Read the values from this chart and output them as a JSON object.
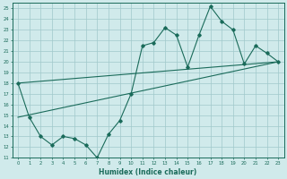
{
  "xlabel": "Humidex (Indice chaleur)",
  "ylabel": "",
  "bg_color": "#d0eaeb",
  "grid_color": "#a0c8ca",
  "line_color": "#1a6b5a",
  "xlim": [
    -0.5,
    23.5
  ],
  "ylim": [
    11,
    25.5
  ],
  "xticks": [
    0,
    1,
    2,
    3,
    4,
    5,
    6,
    7,
    8,
    9,
    10,
    11,
    12,
    13,
    14,
    15,
    16,
    17,
    18,
    19,
    20,
    21,
    22,
    23
  ],
  "yticks": [
    11,
    12,
    13,
    14,
    15,
    16,
    17,
    18,
    19,
    20,
    21,
    22,
    23,
    24,
    25
  ],
  "curve1_x": [
    0,
    1,
    2,
    3,
    4,
    5,
    6,
    7,
    8,
    9,
    10,
    11,
    12,
    13,
    14,
    15,
    16,
    17,
    18,
    19,
    20,
    21,
    22,
    23
  ],
  "curve1_y": [
    18.0,
    14.8,
    13.0,
    12.2,
    13.0,
    12.8,
    12.2,
    11.0,
    13.2,
    14.5,
    17.0,
    21.5,
    21.8,
    23.2,
    22.5,
    19.5,
    22.5,
    25.2,
    23.8,
    23.0,
    19.8,
    21.5,
    20.8,
    20.0
  ],
  "line1_x": [
    0,
    23
  ],
  "line1_y": [
    18.0,
    20.0
  ],
  "line2_x": [
    0,
    23
  ],
  "line2_y": [
    14.8,
    20.0
  ]
}
